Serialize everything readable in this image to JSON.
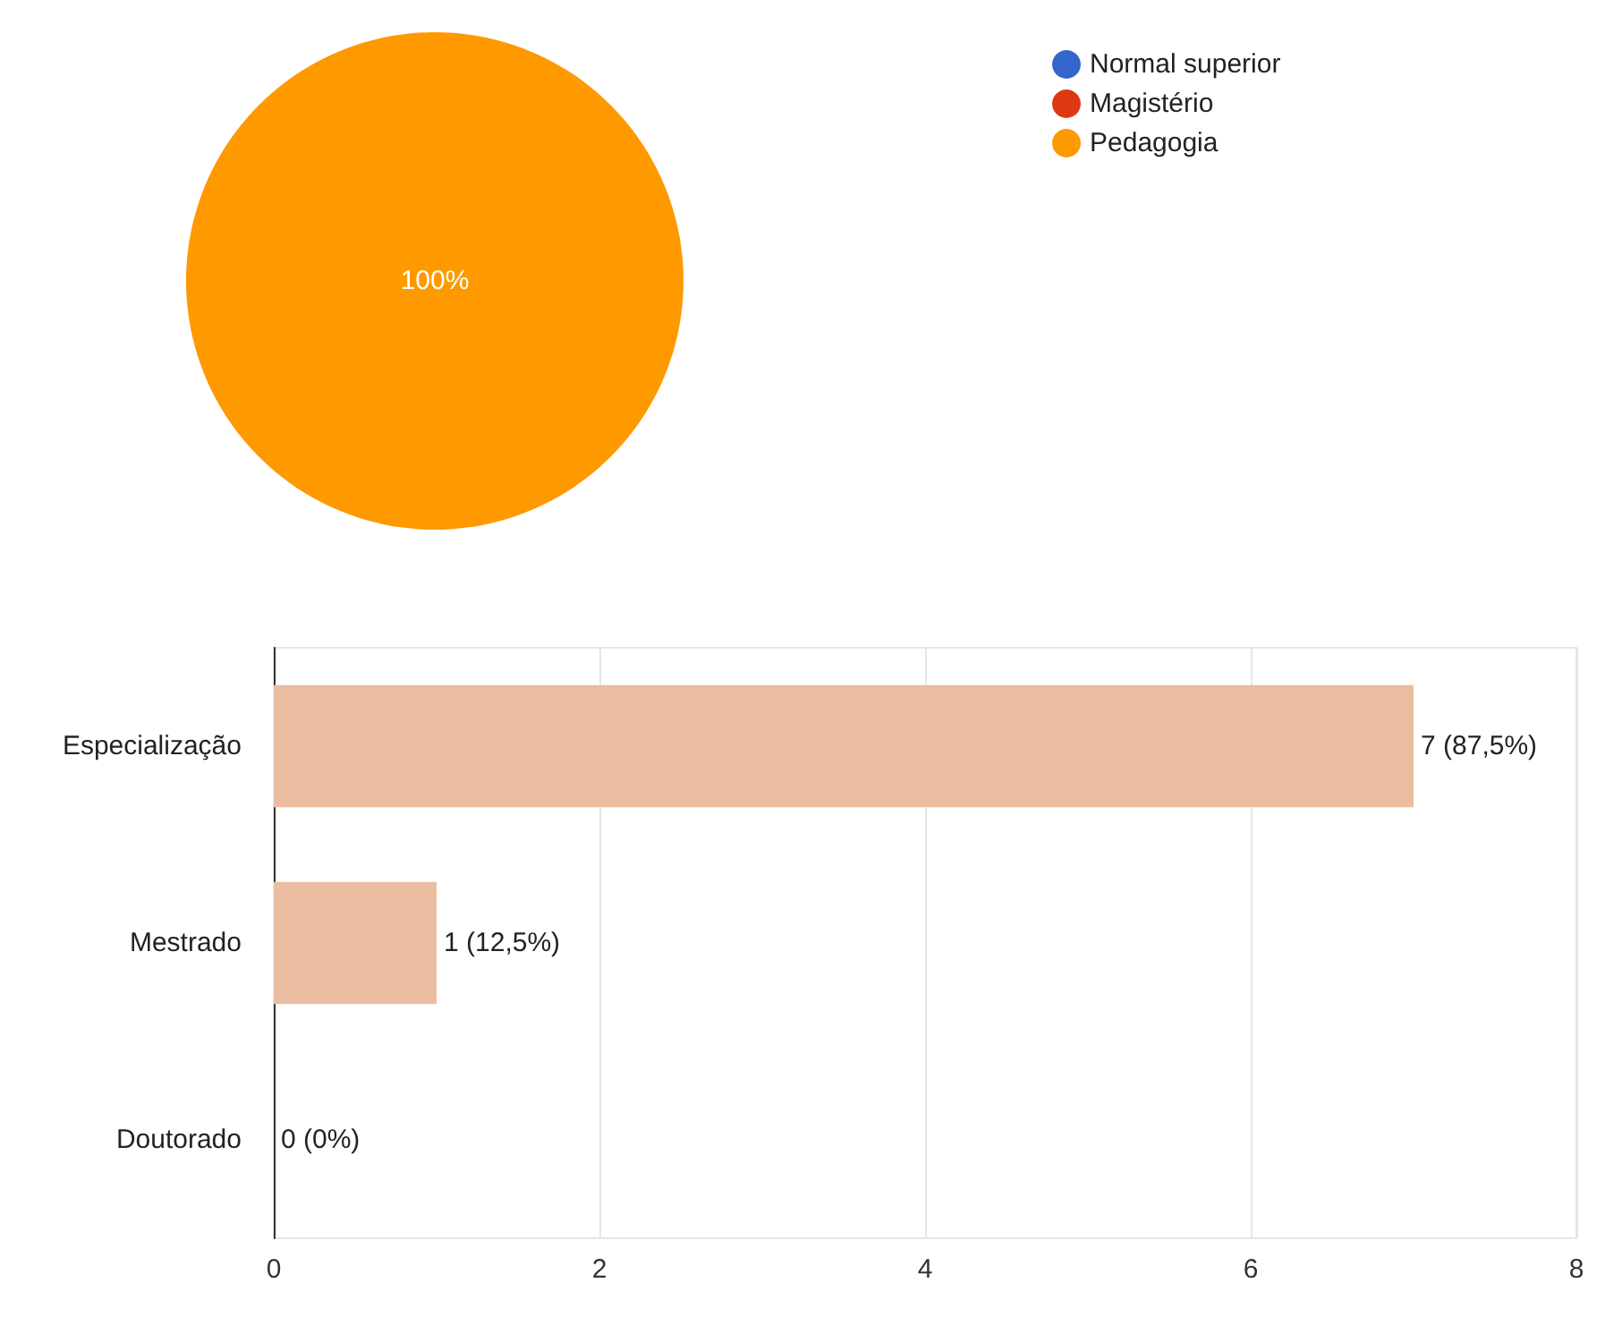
{
  "chart_data": [
    {
      "type": "pie",
      "categories": [
        "Normal superior",
        "Magistério",
        "Pedagogia"
      ],
      "values": [
        0,
        0,
        100
      ],
      "colors": [
        "#3366cc",
        "#dc3912",
        "#ff9900"
      ],
      "value_labels": [
        null,
        null,
        "100%"
      ],
      "legend": "top right"
    },
    {
      "type": "bar",
      "orientation": "horizontal",
      "categories": [
        "Especialização",
        "Mestrado",
        "Doutorado"
      ],
      "values": [
        7,
        1,
        0
      ],
      "color": "#eabda0",
      "value_labels": [
        "7 (87,5%)",
        "1 (12,5%)",
        "0 (0%)"
      ],
      "xlim": [
        0,
        8
      ],
      "xticks": [
        0,
        2,
        4,
        6,
        8
      ],
      "grid": "x"
    }
  ]
}
